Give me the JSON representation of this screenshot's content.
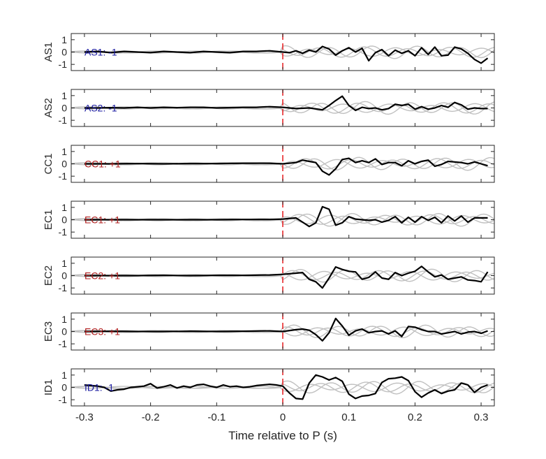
{
  "figure": {
    "xlabel": "Time relative to P (s)",
    "xticks": [
      "-0.3",
      "-0.2",
      "-0.1",
      "0",
      "0.1",
      "0.2",
      "0.3"
    ],
    "yticks": [
      "1",
      "0",
      "-1"
    ]
  },
  "chart_data": {
    "type": "line",
    "xlim": [
      -0.32,
      0.32
    ],
    "ylim": [
      -1.5,
      1.5
    ],
    "pick_line": {
      "x": 0,
      "color": "#e8272a"
    },
    "colors": {
      "trace": "#000000",
      "background": "#c0c0c0",
      "polarity_negative": "#1a1aa0",
      "polarity_positive": "#b01e1e"
    },
    "panels": [
      {
        "ylabel": "AS1",
        "annotation": "AS1: -1",
        "polarity": -1,
        "x": [
          -0.3,
          -0.28,
          -0.26,
          -0.24,
          -0.22,
          -0.2,
          -0.18,
          -0.16,
          -0.14,
          -0.12,
          -0.1,
          -0.08,
          -0.06,
          -0.04,
          -0.02,
          0.0,
          0.01,
          0.02,
          0.03,
          0.04,
          0.05,
          0.06,
          0.07,
          0.08,
          0.09,
          0.1,
          0.11,
          0.12,
          0.13,
          0.14,
          0.15,
          0.16,
          0.17,
          0.18,
          0.19,
          0.2,
          0.21,
          0.22,
          0.23,
          0.24,
          0.25,
          0.26,
          0.27,
          0.28,
          0.29,
          0.3,
          0.31
        ],
        "y": [
          0.0,
          0.05,
          -0.05,
          0.05,
          0.0,
          -0.05,
          0.05,
          0.0,
          -0.05,
          0.05,
          0.0,
          -0.05,
          0.05,
          0.05,
          0.1,
          0.0,
          -0.05,
          0.1,
          -0.1,
          0.15,
          0.0,
          0.45,
          0.25,
          -0.25,
          0.1,
          0.35,
          0.0,
          0.3,
          -0.7,
          -0.05,
          0.2,
          -0.3,
          0.15,
          -0.1,
          0.1,
          -0.3,
          0.35,
          -0.2,
          0.4,
          -0.3,
          -0.25,
          0.4,
          0.25,
          -0.1,
          -0.6,
          -0.9,
          -0.5
        ]
      },
      {
        "ylabel": "AS2",
        "annotation": "AS2: -1",
        "polarity": -1,
        "x": [
          -0.3,
          -0.28,
          -0.26,
          -0.24,
          -0.22,
          -0.2,
          -0.18,
          -0.16,
          -0.14,
          -0.12,
          -0.1,
          -0.08,
          -0.06,
          -0.04,
          -0.02,
          0.0,
          0.02,
          0.04,
          0.06,
          0.07,
          0.08,
          0.09,
          0.1,
          0.11,
          0.12,
          0.13,
          0.14,
          0.15,
          0.16,
          0.17,
          0.18,
          0.19,
          0.2,
          0.21,
          0.22,
          0.23,
          0.24,
          0.25,
          0.26,
          0.27,
          0.28,
          0.29,
          0.3,
          0.31
        ],
        "y": [
          0.0,
          0.0,
          0.02,
          0.0,
          0.05,
          0.0,
          0.05,
          0.02,
          0.05,
          0.05,
          0.0,
          0.02,
          0.05,
          0.05,
          0.1,
          0.05,
          -0.05,
          0.0,
          -0.15,
          0.2,
          0.6,
          0.95,
          0.2,
          -0.2,
          0.05,
          -0.05,
          0.0,
          -0.15,
          -0.05,
          0.3,
          0.2,
          0.3,
          -0.1,
          0.1,
          -0.1,
          0.0,
          0.2,
          0.05,
          0.45,
          0.25,
          -0.1,
          0.0,
          -0.05,
          -0.05
        ]
      },
      {
        "ylabel": "CC1",
        "annotation": "CC1: +1",
        "polarity": 1,
        "x": [
          -0.3,
          -0.26,
          -0.22,
          -0.18,
          -0.14,
          -0.1,
          -0.06,
          -0.02,
          0.0,
          0.02,
          0.03,
          0.04,
          0.05,
          0.06,
          0.07,
          0.08,
          0.09,
          0.1,
          0.11,
          0.12,
          0.13,
          0.14,
          0.15,
          0.16,
          0.17,
          0.18,
          0.19,
          0.2,
          0.21,
          0.22,
          0.23,
          0.24,
          0.25,
          0.26,
          0.27,
          0.28,
          0.29,
          0.3,
          0.31
        ],
        "y": [
          0.0,
          0.0,
          0.02,
          0.0,
          0.02,
          0.02,
          0.05,
          0.05,
          0.0,
          0.1,
          0.3,
          0.2,
          0.1,
          -0.6,
          -0.9,
          -0.4,
          0.35,
          0.45,
          0.1,
          0.25,
          0.1,
          0.4,
          -0.05,
          0.1,
          0.1,
          -0.15,
          0.25,
          0.0,
          0.2,
          0.3,
          -0.2,
          -0.05,
          0.2,
          0.15,
          0.1,
          0.0,
          0.15,
          0.0,
          -0.15
        ]
      },
      {
        "ylabel": "EC1",
        "annotation": "EC1: +1",
        "polarity": 1,
        "x": [
          -0.3,
          -0.26,
          -0.22,
          -0.18,
          -0.14,
          -0.1,
          -0.06,
          -0.02,
          0.0,
          0.02,
          0.03,
          0.04,
          0.05,
          0.06,
          0.07,
          0.08,
          0.09,
          0.1,
          0.11,
          0.12,
          0.13,
          0.14,
          0.15,
          0.16,
          0.17,
          0.18,
          0.19,
          0.2,
          0.21,
          0.22,
          0.23,
          0.24,
          0.25,
          0.26,
          0.27,
          0.28,
          0.29,
          0.3,
          0.31
        ],
        "y": [
          0.0,
          0.0,
          0.0,
          0.0,
          0.0,
          0.0,
          0.02,
          0.02,
          0.05,
          0.15,
          -0.2,
          -0.55,
          -0.25,
          1.05,
          0.85,
          -0.45,
          -0.25,
          0.25,
          0.05,
          0.0,
          -0.05,
          0.0,
          -0.2,
          -0.05,
          0.25,
          -0.25,
          0.2,
          -0.2,
          0.25,
          -0.05,
          0.2,
          -0.25,
          0.3,
          -0.1,
          0.3,
          -0.2,
          0.15,
          0.15,
          0.15
        ]
      },
      {
        "ylabel": "EC2",
        "annotation": "EC2: +1",
        "polarity": 1,
        "x": [
          -0.3,
          -0.26,
          -0.22,
          -0.18,
          -0.14,
          -0.1,
          -0.06,
          -0.02,
          0.0,
          0.02,
          0.03,
          0.04,
          0.05,
          0.06,
          0.07,
          0.08,
          0.09,
          0.1,
          0.11,
          0.12,
          0.13,
          0.14,
          0.15,
          0.16,
          0.17,
          0.18,
          0.19,
          0.2,
          0.21,
          0.22,
          0.23,
          0.24,
          0.25,
          0.26,
          0.27,
          0.28,
          0.29,
          0.3,
          0.31
        ],
        "y": [
          0.0,
          0.0,
          0.0,
          0.02,
          0.0,
          0.02,
          0.02,
          0.05,
          0.1,
          0.2,
          0.25,
          -0.3,
          -0.5,
          -1.0,
          -0.2,
          0.7,
          0.5,
          0.35,
          0.3,
          -0.3,
          -0.15,
          0.3,
          -0.2,
          -0.3,
          0.25,
          0.0,
          0.2,
          0.35,
          0.75,
          0.3,
          -0.1,
          0.05,
          -0.3,
          -0.2,
          -0.1,
          -0.35,
          -0.4,
          -0.5,
          0.3
        ]
      },
      {
        "ylabel": "EC3",
        "annotation": "EC3: +1",
        "polarity": 1,
        "x": [
          -0.3,
          -0.26,
          -0.22,
          -0.18,
          -0.14,
          -0.1,
          -0.06,
          -0.02,
          0.0,
          0.02,
          0.03,
          0.04,
          0.05,
          0.06,
          0.07,
          0.08,
          0.09,
          0.1,
          0.11,
          0.12,
          0.13,
          0.14,
          0.15,
          0.16,
          0.17,
          0.18,
          0.19,
          0.2,
          0.21,
          0.22,
          0.23,
          0.24,
          0.25,
          0.26,
          0.27,
          0.28,
          0.29,
          0.3,
          0.31
        ],
        "y": [
          0.0,
          0.02,
          0.0,
          0.0,
          0.02,
          0.0,
          0.02,
          0.05,
          0.0,
          0.15,
          0.2,
          0.1,
          -0.25,
          -0.75,
          -0.1,
          1.05,
          0.45,
          -0.3,
          0.05,
          0.2,
          -0.1,
          0.0,
          0.05,
          -0.2,
          0.05,
          -0.4,
          0.4,
          0.35,
          0.15,
          0.0,
          0.0,
          -0.2,
          -0.1,
          0.0,
          -0.2,
          -0.05,
          0.0,
          -0.15,
          0.05
        ]
      },
      {
        "ylabel": "ID1",
        "annotation": "ID1: -1",
        "polarity": -1,
        "x": [
          -0.3,
          -0.29,
          -0.28,
          -0.27,
          -0.26,
          -0.25,
          -0.24,
          -0.23,
          -0.22,
          -0.21,
          -0.2,
          -0.19,
          -0.18,
          -0.17,
          -0.16,
          -0.15,
          -0.14,
          -0.13,
          -0.12,
          -0.11,
          -0.1,
          -0.09,
          -0.08,
          -0.07,
          -0.06,
          -0.05,
          -0.04,
          -0.03,
          -0.02,
          -0.01,
          0.0,
          0.01,
          0.02,
          0.03,
          0.04,
          0.05,
          0.06,
          0.07,
          0.08,
          0.09,
          0.1,
          0.11,
          0.12,
          0.13,
          0.14,
          0.15,
          0.16,
          0.17,
          0.18,
          0.19,
          0.2,
          0.21,
          0.22,
          0.23,
          0.24,
          0.25,
          0.26,
          0.27,
          0.28,
          0.29,
          0.3,
          0.31
        ],
        "y": [
          0.2,
          0.15,
          0.1,
          0.0,
          -0.3,
          -0.2,
          -0.15,
          0.0,
          0.05,
          0.1,
          0.3,
          -0.05,
          0.05,
          0.2,
          -0.05,
          0.1,
          0.0,
          0.2,
          0.25,
          0.1,
          0.0,
          0.2,
          0.05,
          0.1,
          0.0,
          0.05,
          0.15,
          0.2,
          0.25,
          0.2,
          0.1,
          -0.45,
          -0.9,
          -0.95,
          0.35,
          1.0,
          0.85,
          0.6,
          0.8,
          0.5,
          -0.55,
          -0.9,
          -0.7,
          -0.65,
          -0.5,
          0.4,
          0.7,
          0.75,
          0.85,
          0.55,
          -0.35,
          -0.8,
          -0.45,
          -0.2,
          -0.5,
          -0.3,
          -0.2,
          0.35,
          0.2,
          -0.4,
          0.0,
          0.2
        ]
      }
    ]
  }
}
